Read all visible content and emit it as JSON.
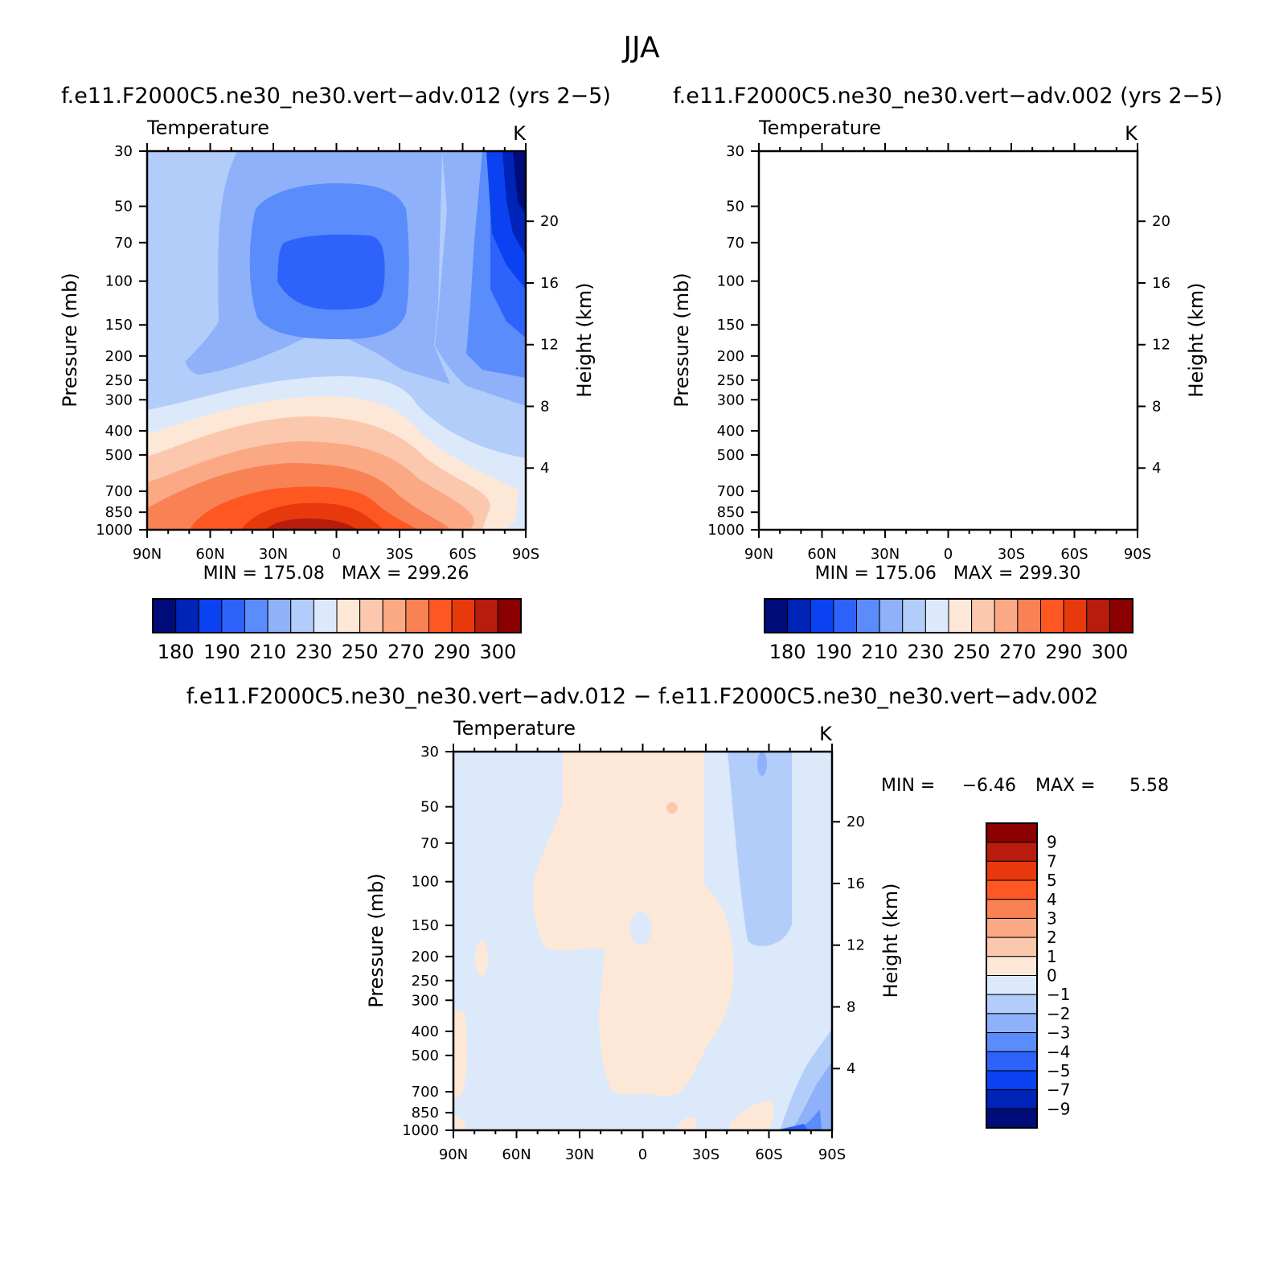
{
  "figure": {
    "title": "JJA"
  },
  "colors": {
    "warm": [
      "#fde8d7",
      "#fcc8ad",
      "#fba985",
      "#f98254",
      "#ff5722",
      "#e8390d",
      "#b71c0c",
      "#8b0000"
    ],
    "cool": [
      "#dce9fb",
      "#b3cdfa",
      "#8eb1fa",
      "#5b8cfb",
      "#2d63fb",
      "#0a41f0",
      "#0023b8",
      "#000c7a"
    ]
  },
  "chart_data": [
    {
      "type": "contour",
      "panel_title": "f.e11.F2000C5.ne30_ne30.vert−adv.012 (yrs 2−5)",
      "variable": "Temperature",
      "units": "K",
      "xlabel": "",
      "ylabel": "Pressure (mb)",
      "ylabel_right": "Height (km)",
      "x_ticks": [
        "90N",
        "60N",
        "30N",
        "0",
        "30S",
        "60S",
        "90S"
      ],
      "x_range": [
        90,
        -90
      ],
      "y_ticks": [
        30,
        50,
        70,
        100,
        150,
        200,
        250,
        300,
        400,
        500,
        700,
        850,
        1000
      ],
      "y_range": [
        30,
        1000
      ],
      "height_ticks": [
        4,
        8,
        12,
        16,
        20
      ],
      "stats": "MIN = 175.08   MAX = 299.26",
      "min": 175.08,
      "max": 299.26,
      "contour_levels": [
        175,
        180,
        185,
        190,
        200,
        210,
        220,
        230,
        240,
        250,
        260,
        270,
        280,
        290,
        295,
        300
      ],
      "colorbar_labels": [
        "180",
        "190",
        "210",
        "230",
        "250",
        "270",
        "290",
        "300"
      ]
    },
    {
      "type": "contour",
      "panel_title": "f.e11.F2000C5.ne30_ne30.vert−adv.002 (yrs 2−5)",
      "variable": "Temperature",
      "units": "K",
      "xlabel": "",
      "ylabel": "Pressure (mb)",
      "ylabel_right": "Height (km)",
      "x_ticks": [
        "90N",
        "60N",
        "30N",
        "0",
        "30S",
        "60S",
        "90S"
      ],
      "x_range": [
        90,
        -90
      ],
      "y_ticks": [
        30,
        50,
        70,
        100,
        150,
        200,
        250,
        300,
        400,
        500,
        700,
        850,
        1000
      ],
      "y_range": [
        30,
        1000
      ],
      "height_ticks": [
        4,
        8,
        12,
        16,
        20
      ],
      "stats": "MIN = 175.06   MAX = 299.30",
      "min": 175.06,
      "max": 299.3,
      "contour_levels": [
        175,
        180,
        185,
        190,
        200,
        210,
        220,
        230,
        240,
        250,
        260,
        270,
        280,
        290,
        295,
        300
      ],
      "colorbar_labels": [
        "180",
        "190",
        "210",
        "230",
        "250",
        "270",
        "290",
        "300"
      ]
    },
    {
      "type": "contour",
      "panel_title": "f.e11.F2000C5.ne30_ne30.vert−adv.012 − f.e11.F2000C5.ne30_ne30.vert−adv.002",
      "variable": "Temperature",
      "units": "K",
      "xlabel": "",
      "ylabel": "Pressure (mb)",
      "ylabel_right": "Height (km)",
      "x_ticks": [
        "90N",
        "60N",
        "30N",
        "0",
        "30S",
        "60S",
        "90S"
      ],
      "x_range": [
        90,
        -90
      ],
      "y_ticks": [
        30,
        50,
        70,
        100,
        150,
        200,
        250,
        300,
        400,
        500,
        700,
        850,
        1000
      ],
      "y_range": [
        30,
        1000
      ],
      "height_ticks": [
        4,
        8,
        12,
        16,
        20
      ],
      "stats_min_label": "MIN =",
      "stats_min": "−6.46",
      "stats_max_label": "MAX =",
      "stats_max": "5.58",
      "min": -6.46,
      "max": 5.58,
      "colorbar_labels": [
        "9",
        "7",
        "5",
        "4",
        "3",
        "2",
        "1",
        "0",
        "−1",
        "−2",
        "−3",
        "−4",
        "−5",
        "−7",
        "−9"
      ]
    }
  ]
}
